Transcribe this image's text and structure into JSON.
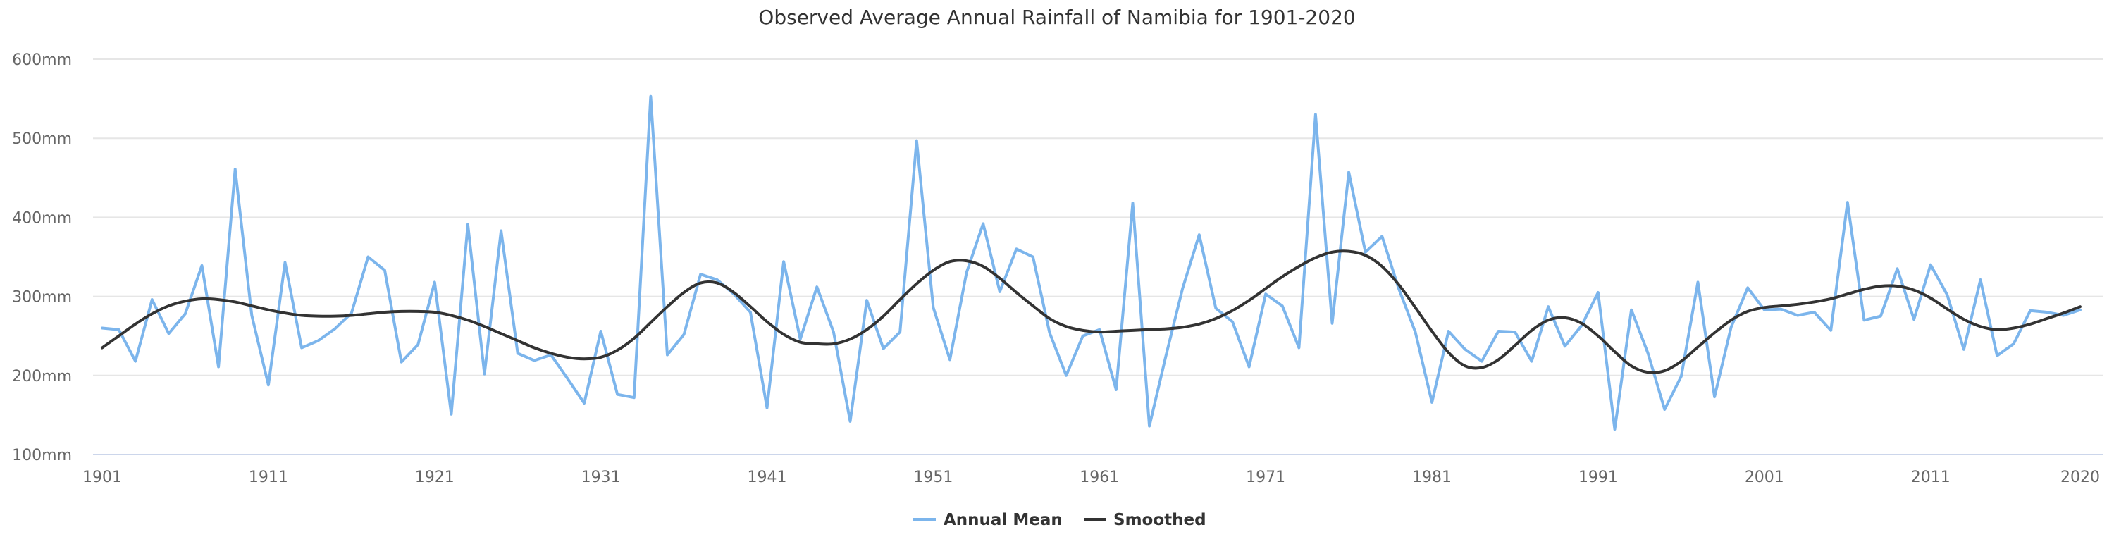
{
  "chart_data": {
    "type": "line",
    "title": "Observed Average Annual Rainfall of Namibia for 1901-2020",
    "xlabel": "",
    "ylabel": "",
    "ylim": [
      100,
      600
    ],
    "y_unit_suffix": "mm",
    "y_ticks": [
      "100mm",
      "200mm",
      "300mm",
      "400mm",
      "500mm",
      "600mm"
    ],
    "x_ticks": [
      "1901",
      "1911",
      "1921",
      "1931",
      "1941",
      "1951",
      "1961",
      "1971",
      "1981",
      "1991",
      "2001",
      "2011",
      "2020"
    ],
    "grid": true,
    "legend_position": "bottom-center",
    "x_start": 1901,
    "series": [
      {
        "name": "Annual Mean",
        "color": "#7cb5ec",
        "values": [
          260,
          258,
          218,
          296,
          253,
          278,
          339,
          211,
          461,
          276,
          188,
          343,
          235,
          244,
          259,
          279,
          350,
          333,
          217,
          239,
          318,
          151,
          391,
          202,
          383,
          228,
          219,
          226,
          196,
          165,
          256,
          176,
          172,
          553,
          226,
          252,
          328,
          321,
          303,
          280,
          159,
          344,
          246,
          312,
          255,
          142,
          295,
          234,
          255,
          497,
          286,
          220,
          330,
          392,
          306,
          360,
          350,
          254,
          200,
          250,
          258,
          182,
          418,
          136,
          225,
          310,
          378,
          285,
          268,
          211,
          303,
          288,
          235,
          530,
          266,
          457,
          356,
          376,
          310,
          255,
          166,
          256,
          233,
          218,
          256,
          255,
          218,
          287,
          237,
          263,
          305,
          132,
          283,
          228,
          157,
          199,
          318,
          173,
          261,
          311,
          283,
          284,
          276,
          280,
          257,
          419,
          270,
          275,
          335,
          271,
          340,
          302,
          233,
          321,
          225,
          240,
          282,
          280,
          276,
          283
        ]
      },
      {
        "name": "Smoothed",
        "color": "#333333",
        "values": [
          235,
          250,
          265,
          278,
          288,
          294,
          297,
          296,
          293,
          288,
          283,
          279,
          276,
          275,
          275,
          276,
          278,
          280,
          281,
          281,
          280,
          276,
          270,
          262,
          253,
          244,
          235,
          228,
          223,
          221,
          223,
          232,
          247,
          267,
          287,
          305,
          317,
          317,
          305,
          287,
          268,
          252,
          242,
          240,
          240,
          246,
          258,
          275,
          296,
          316,
          333,
          344,
          345,
          338,
          323,
          305,
          288,
          272,
          262,
          257,
          255,
          256,
          257,
          258,
          259,
          261,
          265,
          272,
          282,
          295,
          310,
          325,
          338,
          349,
          356,
          357,
          352,
          338,
          315,
          286,
          256,
          229,
          212,
          210,
          220,
          238,
          257,
          270,
          273,
          266,
          250,
          230,
          212,
          204,
          206,
          218,
          236,
          254,
          270,
          281,
          286,
          288,
          290,
          293,
          297,
          303,
          309,
          313,
          313,
          308,
          298,
          284,
          271,
          262,
          258,
          260,
          265,
          272,
          279,
          287
        ]
      }
    ]
  }
}
